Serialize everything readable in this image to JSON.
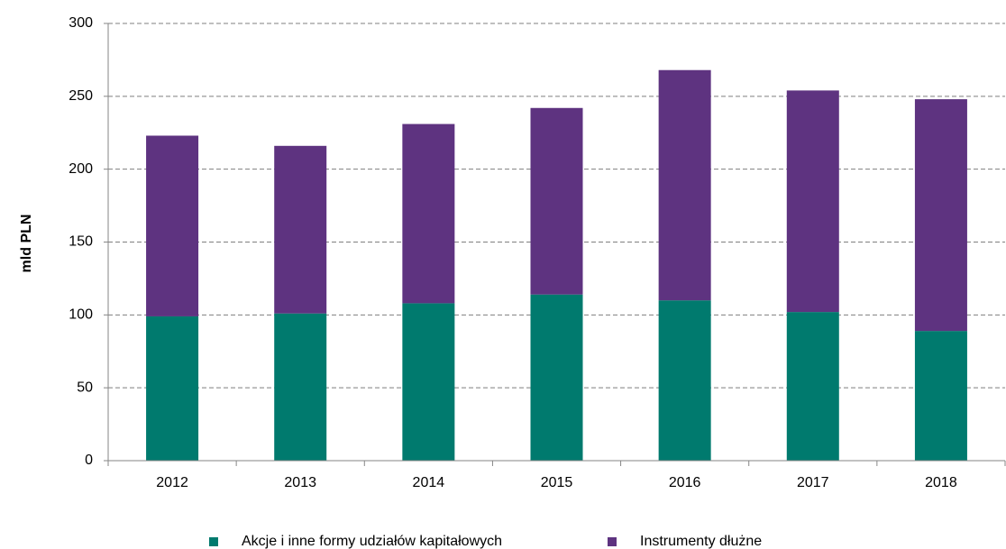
{
  "chart_data": {
    "type": "stacked_bar",
    "y_label": "mld PLN",
    "categories": [
      "2012",
      "2013",
      "2014",
      "2015",
      "2016",
      "2017",
      "2018"
    ],
    "series": [
      {
        "name": "Akcje i inne formy udziałów kapitałowych",
        "color": "#007a6e",
        "values": [
          99,
          101,
          108,
          114,
          110,
          102,
          89
        ]
      },
      {
        "name": "Instrumenty dłużne",
        "color": "#5e3380",
        "values": [
          124,
          115,
          123,
          128,
          158,
          152,
          159
        ]
      }
    ],
    "ylim": [
      0,
      300
    ],
    "yticks": [
      0,
      50,
      100,
      150,
      200,
      250,
      300
    ],
    "grid": true,
    "legend": "bottom"
  }
}
